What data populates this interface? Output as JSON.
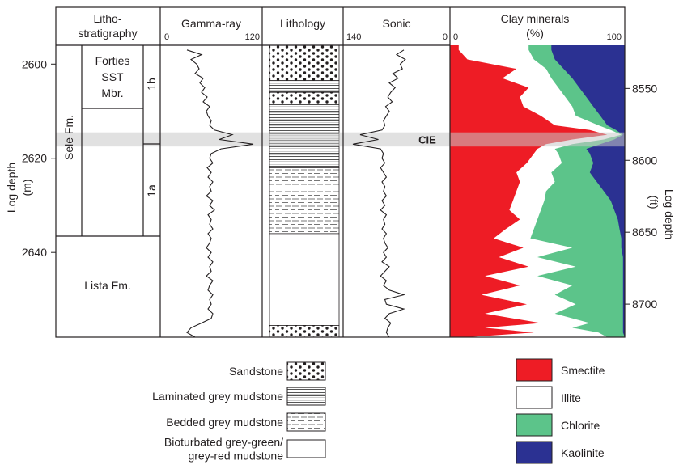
{
  "headers": {
    "lithostrat": [
      "Litho-",
      "stratigraphy"
    ],
    "gamma": "Gamma-ray",
    "lithology": "Lithology",
    "sonic": "Sonic",
    "clay": [
      "Clay minerals",
      "(%)"
    ]
  },
  "tracks": {
    "gamma": {
      "min": "0",
      "max": "120",
      "range": [
        0,
        120
      ]
    },
    "sonic": {
      "min": "140",
      "max": "0",
      "range": [
        140,
        0
      ]
    },
    "clay": {
      "min": "0",
      "max": "100",
      "range": [
        0,
        100
      ]
    }
  },
  "axes": {
    "left": {
      "label": "Log depth",
      "unit": "(m)",
      "range": [
        2596,
        2658
      ],
      "ticks": [
        "2600",
        "2620",
        "2640"
      ]
    },
    "right": {
      "label": "Log depth",
      "unit": "(ft)",
      "range": [
        8520,
        8723
      ],
      "ticks": [
        "8550",
        "8600",
        "8650",
        "8700"
      ]
    }
  },
  "strat": {
    "sele": "Sele Fm.",
    "forties": [
      "Forties",
      "SST",
      "Mbr."
    ],
    "unit_1b": "1b",
    "unit_1a": "1a",
    "lista": "Lista Fm."
  },
  "cie_label": "CIE",
  "legend": {
    "lithology": [
      {
        "label": [
          "Sandstone"
        ],
        "pattern": "dots"
      },
      {
        "label": [
          "Laminated grey mudstone"
        ],
        "pattern": "laminated"
      },
      {
        "label": [
          "Bedded grey mudstone"
        ],
        "pattern": "bedded"
      },
      {
        "label": [
          "Bioturbated grey-green/",
          "grey-red mudstone"
        ],
        "pattern": "plain"
      }
    ],
    "clay": [
      {
        "label": "Smectite",
        "color": "#ee1c25"
      },
      {
        "label": "Illite",
        "color": "#ffffff"
      },
      {
        "label": "Chlorite",
        "color": "#5cc48a"
      },
      {
        "label": "Kaolinite",
        "color": "#2b3192"
      }
    ]
  },
  "chart_data": {
    "type": "well-log",
    "depth_unit": "m",
    "depth_range": [
      2596,
      2658
    ],
    "cie_interval": [
      2614.5,
      2617.5
    ],
    "lithostratigraphy": [
      {
        "unit": "Forties SST Mbr.",
        "top": 2596,
        "base": 2610
      },
      {
        "unit": "Sele Fm. 1b",
        "top": 2596,
        "base": 2617
      },
      {
        "unit": "Sele Fm. 1a",
        "top": 2617,
        "base": 2636
      },
      {
        "unit": "Lista Fm.",
        "top": 2636,
        "base": 2658
      }
    ],
    "lithology": [
      {
        "top": 2596,
        "base": 2603.5,
        "type": "Sandstone"
      },
      {
        "top": 2603.5,
        "base": 2606,
        "type": "Laminated grey mudstone"
      },
      {
        "top": 2606,
        "base": 2608.5,
        "type": "Sandstone"
      },
      {
        "top": 2608.5,
        "base": 2622,
        "type": "Laminated grey mudstone"
      },
      {
        "top": 2622,
        "base": 2636,
        "type": "Bedded grey mudstone"
      },
      {
        "top": 2636,
        "base": 2655.5,
        "type": "Bioturbated grey-green/grey-red mudstone"
      },
      {
        "top": 2655.5,
        "base": 2658,
        "type": "Sandstone"
      }
    ],
    "gamma_ray": {
      "depth": [
        2597,
        2598,
        2599,
        2600,
        2601,
        2602,
        2603,
        2604,
        2605,
        2606,
        2607,
        2608,
        2609,
        2610,
        2611,
        2612,
        2613,
        2614,
        2615,
        2616,
        2617,
        2618,
        2619,
        2620,
        2621,
        2622,
        2623,
        2624,
        2625,
        2626,
        2627,
        2628,
        2629,
        2630,
        2631,
        2632,
        2633,
        2634,
        2635,
        2636,
        2637,
        2638,
        2639,
        2640,
        2641,
        2642,
        2643,
        2644,
        2645,
        2646,
        2647,
        2648,
        2649,
        2650,
        2651,
        2652,
        2653,
        2654,
        2655,
        2656,
        2657,
        2658
      ],
      "value": [
        30,
        48,
        35,
        42,
        45,
        40,
        50,
        46,
        52,
        48,
        55,
        50,
        58,
        54,
        56,
        60,
        58,
        64,
        86,
        70,
        112,
        72,
        60,
        58,
        62,
        55,
        60,
        56,
        62,
        58,
        60,
        54,
        62,
        58,
        64,
        56,
        60,
        58,
        62,
        56,
        60,
        58,
        54,
        60,
        56,
        62,
        58,
        60,
        54,
        62,
        58,
        56,
        62,
        58,
        60,
        56,
        62,
        60,
        48,
        35,
        30,
        40
      ]
    },
    "sonic": {
      "depth": [
        2597,
        2598,
        2599,
        2600,
        2601,
        2602,
        2603,
        2604,
        2605,
        2606,
        2607,
        2608,
        2609,
        2610,
        2611,
        2612,
        2613,
        2614,
        2615,
        2616,
        2617,
        2618,
        2619,
        2620,
        2621,
        2622,
        2623,
        2624,
        2625,
        2626,
        2627,
        2628,
        2629,
        2630,
        2631,
        2632,
        2633,
        2634,
        2635,
        2636,
        2637,
        2638,
        2639,
        2640,
        2641,
        2642,
        2643,
        2644,
        2645,
        2646,
        2647,
        2648,
        2649,
        2650,
        2651,
        2652,
        2653,
        2654,
        2655,
        2656,
        2657,
        2658
      ],
      "value": [
        60,
        70,
        58,
        65,
        62,
        75,
        68,
        80,
        72,
        78,
        82,
        76,
        85,
        80,
        84,
        88,
        86,
        90,
        120,
        95,
        130,
        92,
        88,
        90,
        86,
        92,
        88,
        84,
        90,
        86,
        88,
        84,
        90,
        86,
        92,
        84,
        88,
        86,
        90,
        84,
        88,
        86,
        82,
        88,
        84,
        90,
        80,
        86,
        92,
        84,
        88,
        80,
        60,
        86,
        84,
        60,
        80,
        86,
        78,
        82,
        84,
        80
      ]
    },
    "clay_minerals_cumulative": {
      "depth": [
        2597,
        2599,
        2601,
        2603,
        2605,
        2607,
        2609,
        2611,
        2613,
        2614,
        2615,
        2616,
        2617,
        2618,
        2619,
        2621,
        2623,
        2625,
        2627,
        2629,
        2631,
        2633,
        2635,
        2637,
        2639,
        2641,
        2643,
        2645,
        2647,
        2649,
        2651,
        2653,
        2655,
        2656,
        2657,
        2658
      ],
      "smectite": [
        5,
        10,
        38,
        30,
        45,
        40,
        42,
        52,
        60,
        80,
        90,
        70,
        55,
        50,
        48,
        44,
        38,
        40,
        38,
        36,
        34,
        40,
        32,
        25,
        42,
        28,
        45,
        20,
        40,
        18,
        44,
        20,
        52,
        20,
        48,
        10
      ],
      "smectite_illite": [
        45,
        48,
        55,
        58,
        62,
        66,
        70,
        72,
        85,
        92,
        98,
        88,
        70,
        60,
        62,
        64,
        58,
        60,
        55,
        54,
        52,
        50,
        48,
        46,
        70,
        50,
        72,
        50,
        70,
        60,
        72,
        60,
        80,
        70,
        85,
        90
      ],
      "smectite_illite_chlorite": [
        58,
        60,
        65,
        70,
        74,
        78,
        82,
        86,
        90,
        95,
        99,
        94,
        86,
        78,
        80,
        82,
        80,
        84,
        88,
        92,
        94,
        96,
        97,
        98,
        98,
        99,
        99,
        99,
        99,
        99,
        99,
        99,
        99,
        99,
        99,
        100
      ]
    }
  }
}
